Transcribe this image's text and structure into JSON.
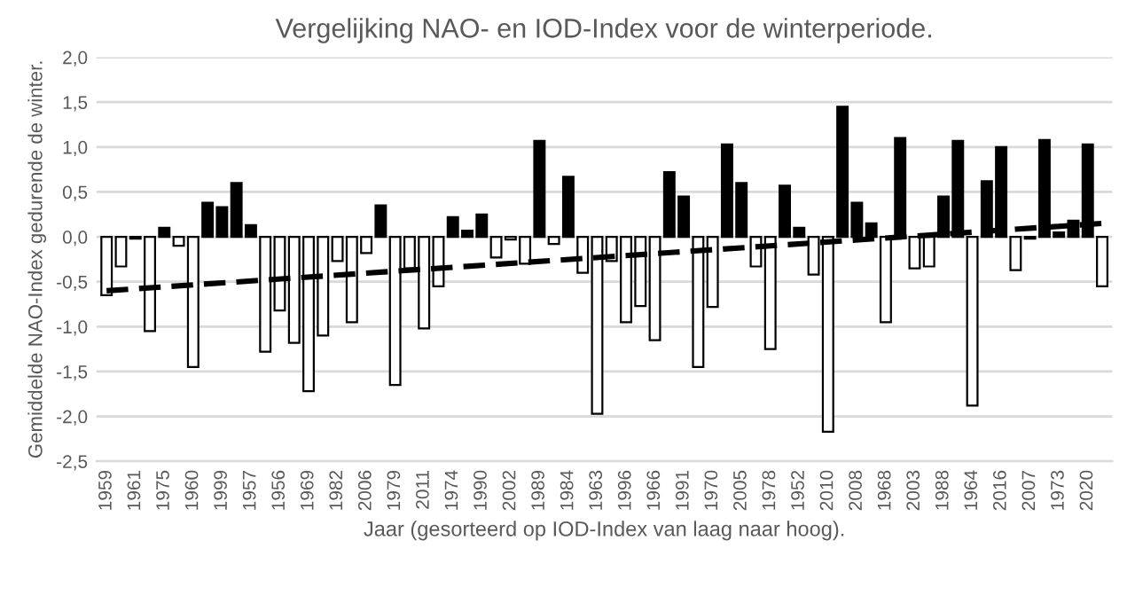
{
  "chart_data": {
    "type": "bar",
    "title": "Vergelijking NAO- en IOD-Index voor de winterperiode.",
    "xlabel": "Jaar (gesorteerd op IOD-Index van laag naar hoog).",
    "ylabel": "Gemiddelde NAO-Index gedurende de winter.",
    "categories": [
      "1959",
      null,
      "1961",
      null,
      "1975",
      null,
      "1960",
      null,
      "1999",
      null,
      "1957",
      null,
      "1956",
      null,
      "1969",
      null,
      "1982",
      null,
      "2006",
      null,
      "1979",
      null,
      "2011",
      null,
      "1974",
      null,
      "1990",
      null,
      "2002",
      null,
      "1989",
      null,
      "1984",
      null,
      "1963",
      null,
      "1996",
      null,
      "1966",
      null,
      "1991",
      null,
      "1970",
      null,
      "2005",
      null,
      "1978",
      null,
      "1952",
      null,
      "2010",
      null,
      "2008",
      null,
      "1968",
      null,
      "2003",
      null,
      "1988",
      null,
      "1964",
      null,
      "2016",
      null,
      "2007",
      null,
      "1973",
      null,
      "2020",
      null
    ],
    "series": [
      {
        "color": "#000000",
        "colors": [
          "#ffffff",
          "#ffffff",
          "#ffffff",
          "#ffffff",
          "#000000",
          "#ffffff",
          "#ffffff",
          "#000000",
          "#000000",
          "#000000",
          "#000000",
          "#ffffff",
          "#ffffff",
          "#ffffff",
          "#ffffff",
          "#ffffff",
          "#ffffff",
          "#ffffff",
          "#ffffff",
          "#000000",
          "#ffffff",
          "#ffffff",
          "#ffffff",
          "#ffffff",
          "#000000",
          "#000000",
          "#000000",
          "#ffffff",
          "#ffffff",
          "#ffffff",
          "#000000",
          "#ffffff",
          "#000000",
          "#ffffff",
          "#ffffff",
          "#ffffff",
          "#ffffff",
          "#ffffff",
          "#ffffff",
          "#000000",
          "#000000",
          "#ffffff",
          "#ffffff",
          "#000000",
          "#000000",
          "#ffffff",
          "#ffffff",
          "#000000",
          "#000000",
          "#ffffff",
          "#ffffff",
          "#000000",
          "#000000",
          "#000000",
          "#ffffff",
          "#000000",
          "#ffffff",
          "#ffffff",
          "#000000",
          "#000000",
          "#ffffff",
          "#000000",
          "#000000",
          "#ffffff",
          "#ffffff",
          "#000000",
          "#000000",
          "#000000",
          "#000000",
          "#ffffff"
        ],
        "values": [
          -0.65,
          -0.33,
          -0.02,
          -1.05,
          0.1,
          -0.1,
          -1.45,
          0.38,
          0.33,
          0.6,
          0.13,
          -1.28,
          -0.82,
          -1.18,
          -1.72,
          -1.1,
          -0.27,
          -0.95,
          -0.18,
          0.35,
          -1.65,
          -0.35,
          -1.02,
          -0.55,
          0.22,
          0.07,
          0.25,
          -0.23,
          -0.03,
          -0.3,
          1.07,
          -0.08,
          0.67,
          -0.4,
          -1.97,
          -0.27,
          -0.95,
          -0.77,
          -1.15,
          0.72,
          0.45,
          -1.45,
          -0.78,
          1.03,
          0.6,
          -0.33,
          -1.25,
          0.57,
          0.1,
          -0.42,
          -2.17,
          1.45,
          0.38,
          0.15,
          -0.95,
          1.1,
          -0.35,
          -0.33,
          0.45,
          1.07,
          -1.88,
          0.62,
          1.0,
          -0.37,
          -0.02,
          1.08,
          0.05,
          0.18,
          1.03,
          -0.55
        ]
      },
      {
        "type": "line",
        "color": "#000000",
        "line_style": "dashed",
        "values": [
          -0.6,
          null,
          null,
          null,
          null,
          null,
          null,
          null,
          null,
          null,
          null,
          null,
          null,
          null,
          null,
          null,
          null,
          null,
          null,
          null,
          null,
          null,
          null,
          null,
          null,
          null,
          null,
          null,
          null,
          null,
          null,
          null,
          null,
          null,
          null,
          null,
          null,
          null,
          null,
          null,
          null,
          null,
          null,
          null,
          null,
          null,
          null,
          null,
          null,
          null,
          null,
          null,
          null,
          null,
          null,
          null,
          null,
          null,
          null,
          null,
          null,
          null,
          null,
          null,
          null,
          null,
          null,
          null,
          null,
          0.15
        ]
      }
    ],
    "ylim": [
      -2.5,
      2.0
    ],
    "yticks": [
      {
        "value": -2.5,
        "label": "-2,5"
      },
      {
        "value": -2.0,
        "label": "-2,0"
      },
      {
        "value": -1.5,
        "label": "-1,5"
      },
      {
        "value": -1.0,
        "label": "-1,0"
      },
      {
        "value": -0.5,
        "label": "-0,5"
      },
      {
        "value": 0.0,
        "label": "0,0"
      },
      {
        "value": 0.5,
        "label": "0,5"
      },
      {
        "value": 1.0,
        "label": "1,0"
      },
      {
        "value": 1.5,
        "label": "1,5"
      },
      {
        "value": 2.0,
        "label": "2,0"
      }
    ],
    "grid": "y",
    "legend": false
  }
}
